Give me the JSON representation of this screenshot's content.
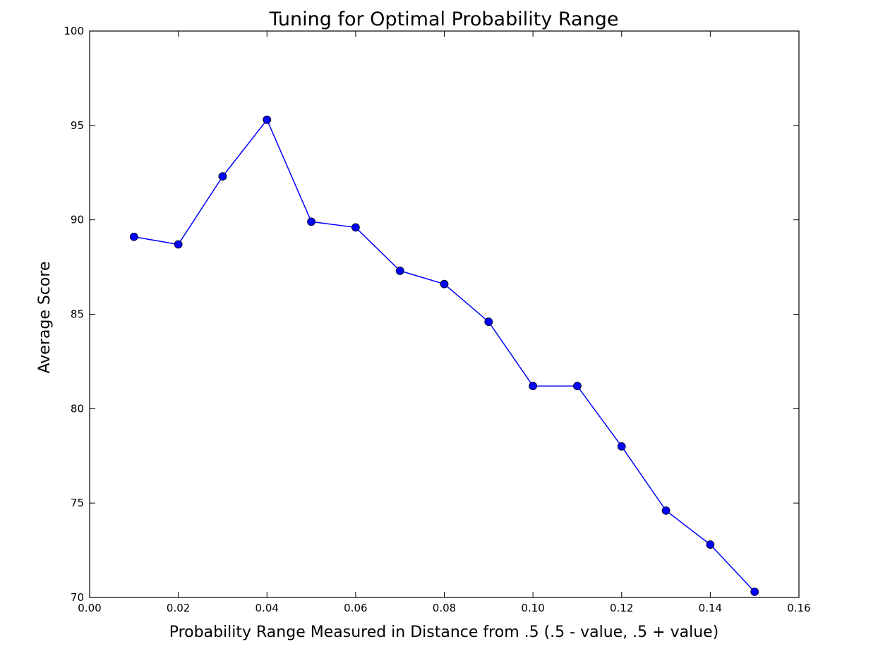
{
  "chart_data": {
    "type": "line",
    "title": "Tuning for Optimal Probability Range",
    "xlabel": "Probability Range Measured in Distance from .5 (.5 - value, .5 + value)",
    "ylabel": "Average Score",
    "xlim": [
      0.0,
      0.16
    ],
    "ylim": [
      70,
      100
    ],
    "xticks": [
      0.0,
      0.02,
      0.04,
      0.06,
      0.08,
      0.1,
      0.12,
      0.14,
      0.16
    ],
    "xtick_labels": [
      "0.00",
      "0.02",
      "0.04",
      "0.06",
      "0.08",
      "0.10",
      "0.12",
      "0.14",
      "0.16"
    ],
    "yticks": [
      70,
      75,
      80,
      85,
      90,
      95,
      100
    ],
    "ytick_labels": [
      "70",
      "75",
      "80",
      "85",
      "90",
      "95",
      "100"
    ],
    "grid": false,
    "series": [
      {
        "color": "#0000ff",
        "marker": "circle",
        "x": [
          0.01,
          0.02,
          0.03,
          0.04,
          0.05,
          0.06,
          0.07,
          0.08,
          0.09,
          0.1,
          0.11,
          0.12,
          0.13,
          0.14,
          0.15
        ],
        "y": [
          89.1,
          88.7,
          92.3,
          95.3,
          89.9,
          89.6,
          87.3,
          86.6,
          84.6,
          81.2,
          81.2,
          78.0,
          74.6,
          72.8,
          70.3
        ]
      }
    ]
  }
}
